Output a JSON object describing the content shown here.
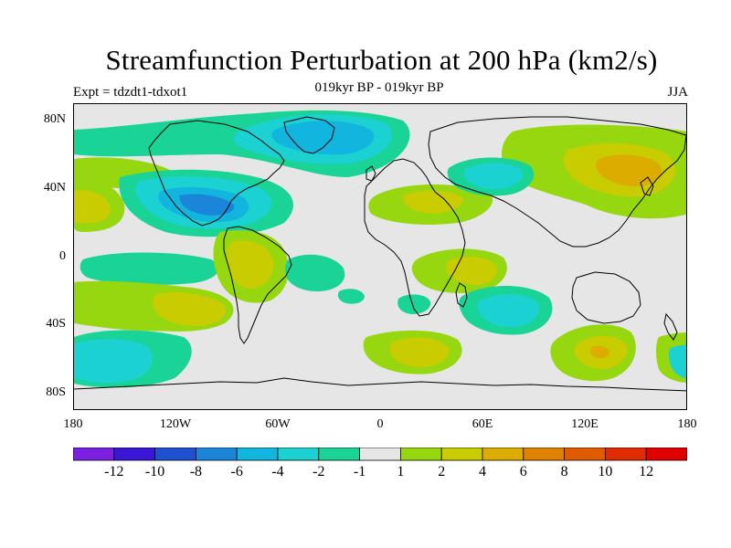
{
  "title": "Streamfunction Perturbation at 200 hPa (km2/s)",
  "subtitle": "019kyr BP - 019kyr BP",
  "experiment": "Expt = tdzdt1-tdxot1",
  "season": "JJA",
  "axes": {
    "lat_labels": [
      "80N",
      "40N",
      "0",
      "40S",
      "80S"
    ],
    "lon_labels": [
      "180",
      "120W",
      "60W",
      "0",
      "60E",
      "120E",
      "180"
    ]
  },
  "colorbar": {
    "colors": [
      "#7b1fe0",
      "#3a17d6",
      "#1f50cf",
      "#1a85d9",
      "#12b5de",
      "#1cd1d1",
      "#19d496",
      "#e6e6e6",
      "#96d70f",
      "#c8cc00",
      "#dcac00",
      "#e08200",
      "#e05a00",
      "#e02c00",
      "#e00000"
    ],
    "labels": [
      "-12",
      "-10",
      "-8",
      "-6",
      "-4",
      "-2",
      "-1",
      "1",
      "2",
      "4",
      "6",
      "8",
      "10",
      "12"
    ]
  },
  "chart_data": {
    "type": "contour-map",
    "projection": "cylindrical equidistant",
    "field": "200 hPa streamfunction perturbation",
    "units": "km2/s",
    "lon_range": [
      -180,
      180
    ],
    "lat_range": [
      -90,
      90
    ],
    "contour_levels": [
      -12,
      -10,
      -8,
      -6,
      -4,
      -2,
      -1,
      1,
      2,
      4,
      6,
      8,
      10,
      12
    ],
    "features": [
      {
        "name": "arctic-low",
        "lon": -35,
        "lat": 73,
        "value": -4
      },
      {
        "name": "north-america-low",
        "lon": -105,
        "lat": 28,
        "value": -6
      },
      {
        "name": "asia-high",
        "lon": 135,
        "lat": 48,
        "value": 6
      },
      {
        "name": "europe-high",
        "lon": 15,
        "lat": 30,
        "value": 4
      },
      {
        "name": "west-asia-low",
        "lon": 60,
        "lat": 45,
        "value": -4
      },
      {
        "name": "south-america-high",
        "lon": -65,
        "lat": -8,
        "value": 4
      },
      {
        "name": "south-atlantic-low",
        "lon": -40,
        "lat": -10,
        "value": -2
      },
      {
        "name": "indian-ocean-high",
        "lon": 60,
        "lat": -15,
        "value": 4
      },
      {
        "name": "south-indian-low",
        "lon": 75,
        "lat": -35,
        "value": -4
      },
      {
        "name": "south-pacific-high",
        "lon": -135,
        "lat": -32,
        "value": 4
      },
      {
        "name": "south-pacific-low",
        "lon": -170,
        "lat": -55,
        "value": -4
      },
      {
        "name": "southern-ocean-high",
        "lon": 130,
        "lat": -55,
        "value": 4
      },
      {
        "name": "southern-atlantic-high",
        "lon": 15,
        "lat": -55,
        "value": 4
      }
    ]
  }
}
